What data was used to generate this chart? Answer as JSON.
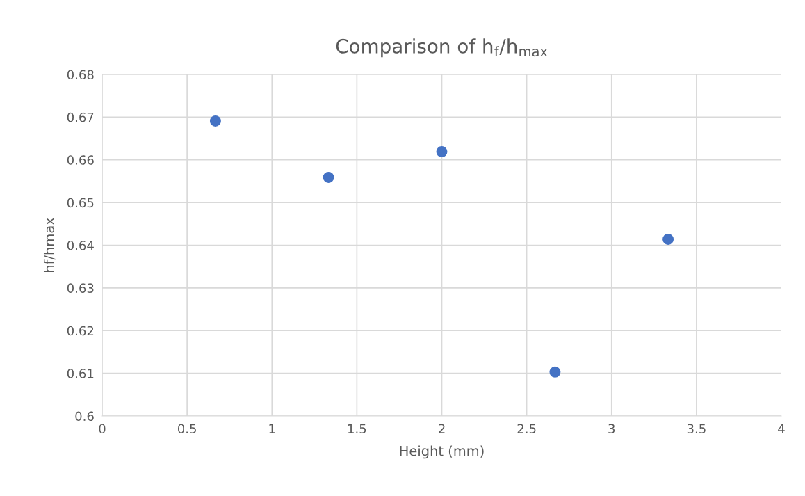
{
  "chart_data": {
    "type": "scatter",
    "title": "Comparison of h$_{f}$/h$_{max}$",
    "xlabel": "Height (mm)",
    "ylabel": "hf/hmax",
    "series": [
      {
        "color": "#4472c4",
        "x": [
          0.667,
          1.333,
          2.0,
          2.667,
          3.333
        ],
        "values": [
          0.6691,
          0.6559,
          0.6619,
          0.6103,
          0.6414
        ]
      }
    ],
    "xlim": [
      0,
      4
    ],
    "xticks": [
      0,
      {
        "value": 0.5,
        "label": "0.5"
      },
      1,
      {
        "value": 1.5,
        "label": "1.5"
      },
      2,
      {
        "value": 2.5,
        "label": "2.5"
      },
      3,
      {
        "value": 3.5,
        "label": "3.5"
      },
      4
    ],
    "ylim": [
      0.6,
      0.68
    ],
    "yticks": [
      {
        "value": 0.6,
        "label": "0.6"
      },
      0.61,
      0.62,
      0.63,
      0.64,
      0.65,
      0.66,
      0.67,
      0.68
    ],
    "grid": true,
    "marker": "circle",
    "legend": false
  }
}
